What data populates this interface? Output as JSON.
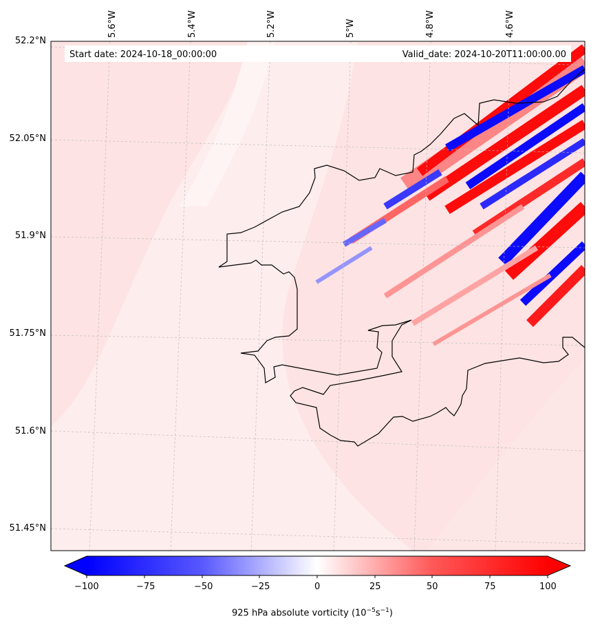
{
  "map": {
    "header": {
      "start_date": "Start date: 2024-10-18_00:00:00",
      "valid_date": "Valid_date: 2024-10-20T11:00:00.00"
    },
    "lat_labels": [
      "52.2°N",
      "52.05°N",
      "51.9°N",
      "51.75°N",
      "51.6°N",
      "51.45°N"
    ],
    "lon_labels": [
      "5.6°W",
      "5.4°W",
      "5.2°W",
      "5°W",
      "4.8°W",
      "4.6°W"
    ],
    "colors": {
      "background_field": "#fde3e3",
      "light_field": "#feefef",
      "positive": "#ff0000",
      "negative": "#0000ff",
      "coastline": "#000000"
    },
    "colorbar": {
      "label": "925 hPa absolute vorticity (10",
      "label_exp1": "−5",
      "label_mid": "s",
      "label_exp2": "−1",
      "label_end": ")",
      "min": -100,
      "max": 100,
      "extend": "both",
      "ticks": [
        "−100",
        "−75",
        "−50",
        "−25",
        "0",
        "25",
        "50",
        "75",
        "100"
      ]
    }
  }
}
